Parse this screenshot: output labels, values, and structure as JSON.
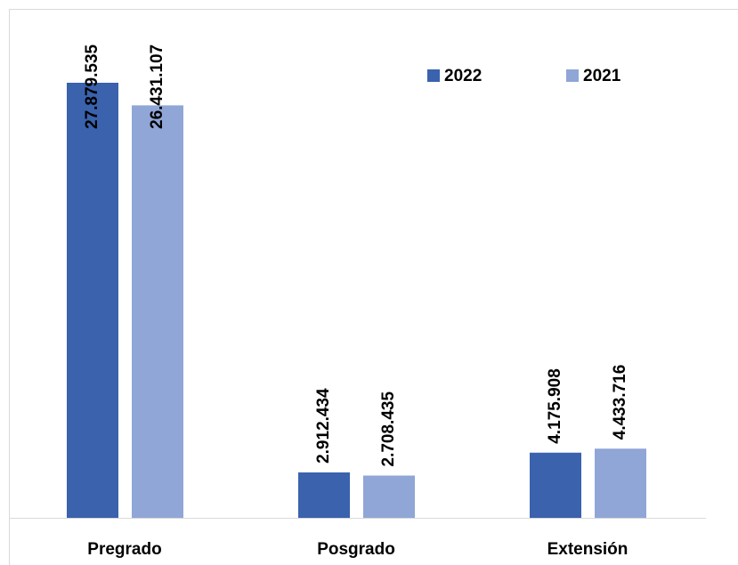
{
  "chart_data": {
    "type": "bar",
    "categories": [
      "Pregrado",
      "Posgrado",
      "Extensión"
    ],
    "series": [
      {
        "name": "2022",
        "color": "#3a62ad",
        "values": [
          27879535,
          2912434,
          4175908
        ],
        "value_labels": [
          "27.879.535",
          "2.912.434",
          "4.175.908"
        ]
      },
      {
        "name": "2021",
        "color": "#8fa6d6",
        "values": [
          26431107,
          2708435,
          4433716
        ],
        "value_labels": [
          "26.431.107",
          "2.708.435",
          "4.433.716"
        ]
      }
    ],
    "legend": "top-right"
  }
}
